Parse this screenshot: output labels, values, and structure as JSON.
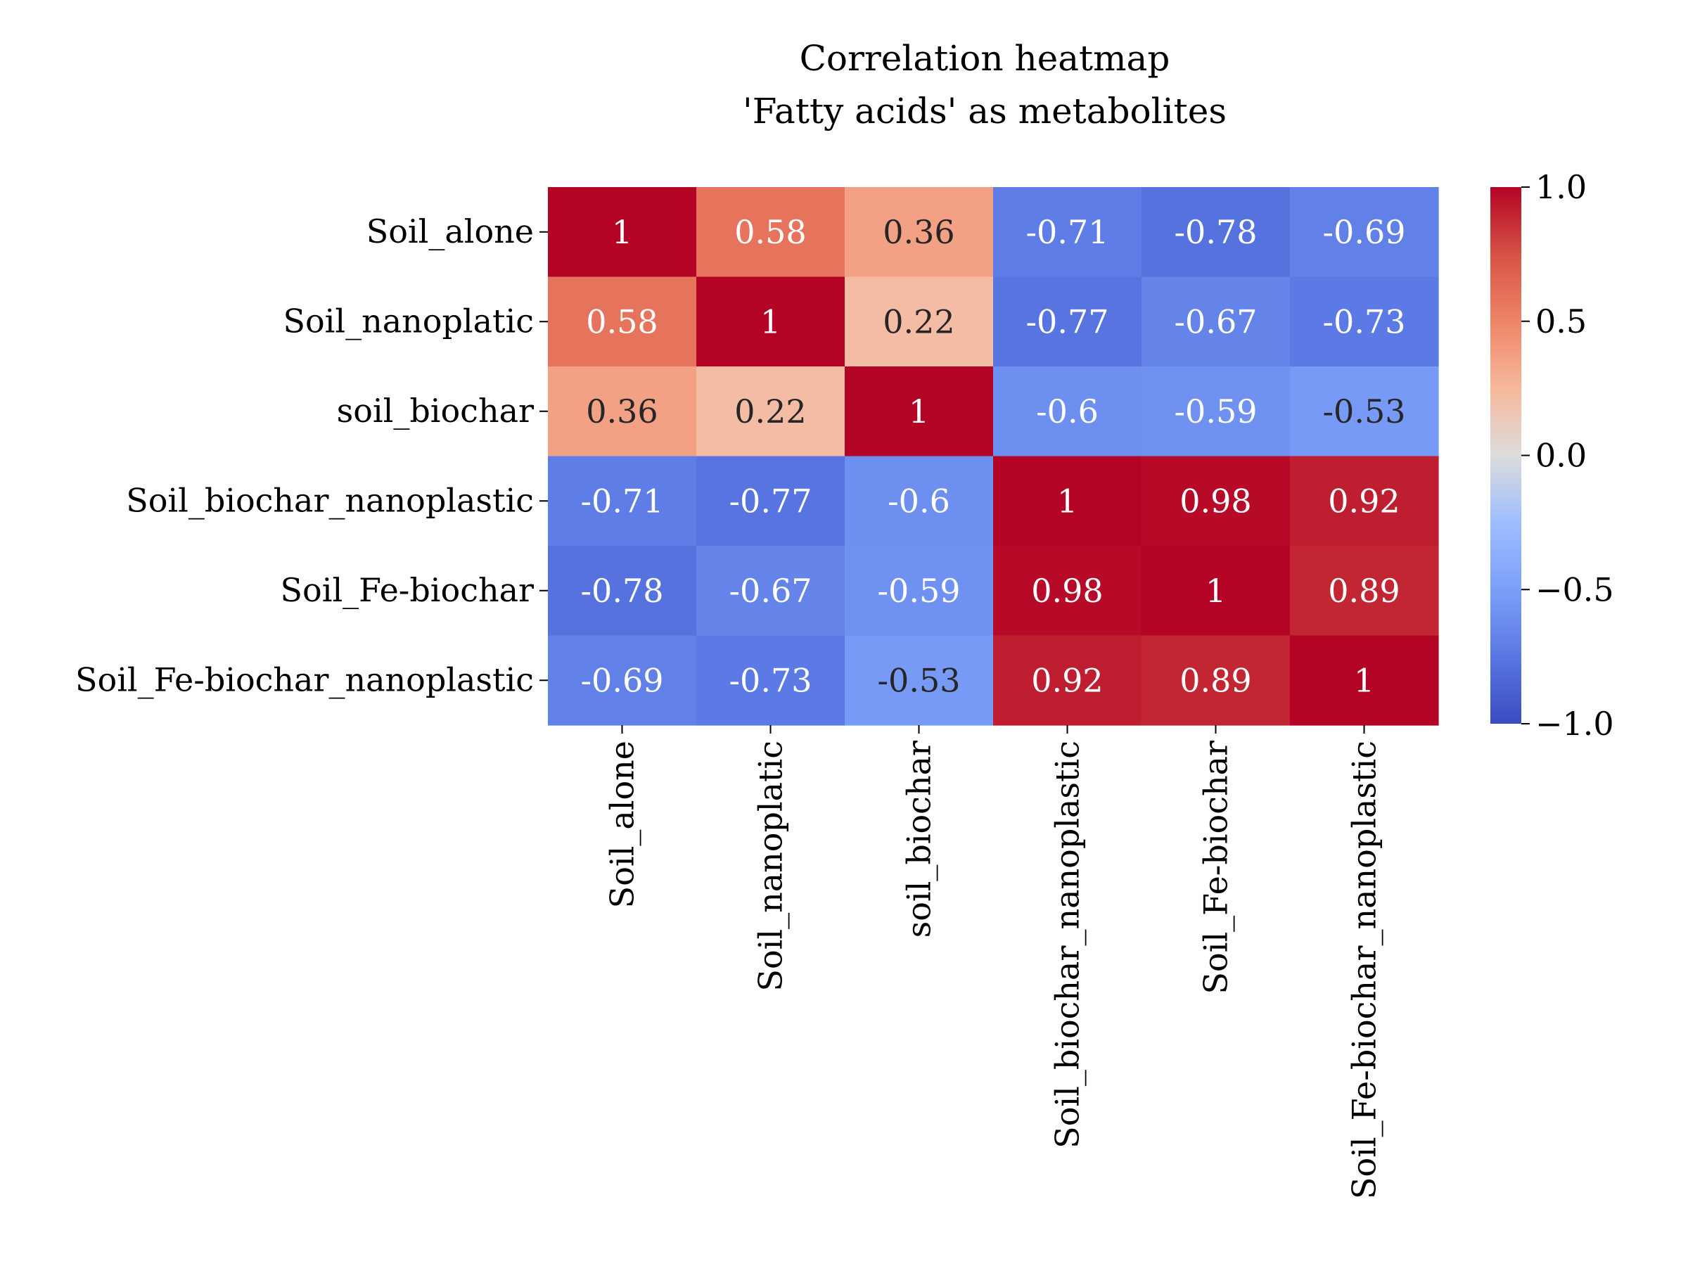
{
  "chart_data": {
    "type": "heatmap",
    "title": [
      "Correlation heatmap",
      "'Fatty acids' as metabolites"
    ],
    "row_labels": [
      "Soil_alone",
      "Soil_nanoplatic",
      "soil_biochar",
      "Soil_biochar_nanoplastic",
      "Soil_Fe-biochar",
      "Soil_Fe-biochar_nanoplastic"
    ],
    "col_labels": [
      "Soil_alone",
      "Soil_nanoplatic",
      "soil_biochar",
      "Soil_biochar_nanoplastic",
      "Soil_Fe-biochar",
      "Soil_Fe-biochar_nanoplastic"
    ],
    "values": [
      [
        1,
        0.58,
        0.36,
        -0.71,
        -0.78,
        -0.69
      ],
      [
        0.58,
        1,
        0.22,
        -0.77,
        -0.67,
        -0.73
      ],
      [
        0.36,
        0.22,
        1,
        -0.6,
        -0.59,
        -0.53
      ],
      [
        -0.71,
        -0.77,
        -0.6,
        1,
        0.98,
        0.92
      ],
      [
        -0.78,
        -0.67,
        -0.59,
        0.98,
        1,
        0.89
      ],
      [
        -0.69,
        -0.73,
        -0.53,
        0.92,
        0.89,
        1
      ]
    ],
    "annotations": [
      [
        "1",
        "0.58",
        "0.36",
        "-0.71",
        "-0.78",
        "-0.69"
      ],
      [
        "0.58",
        "1",
        "0.22",
        "-0.77",
        "-0.67",
        "-0.73"
      ],
      [
        "0.36",
        "0.22",
        "1",
        "-0.6",
        "-0.59",
        "-0.53"
      ],
      [
        "-0.71",
        "-0.77",
        "-0.6",
        "1",
        "0.98",
        "0.92"
      ],
      [
        "-0.78",
        "-0.67",
        "-0.59",
        "0.98",
        "1",
        "0.89"
      ],
      [
        "-0.69",
        "-0.73",
        "-0.53",
        "0.92",
        "0.89",
        "1"
      ]
    ],
    "colormap": "coolwarm",
    "vmin": -1.0,
    "vmax": 1.0,
    "colorbar_ticks": [
      1.0,
      0.5,
      0.0,
      -0.5,
      -1.0
    ],
    "colorbar_tick_labels": [
      "1.0",
      "0.5",
      "0.0",
      "−0.5",
      "−1.0"
    ],
    "grid": false
  }
}
